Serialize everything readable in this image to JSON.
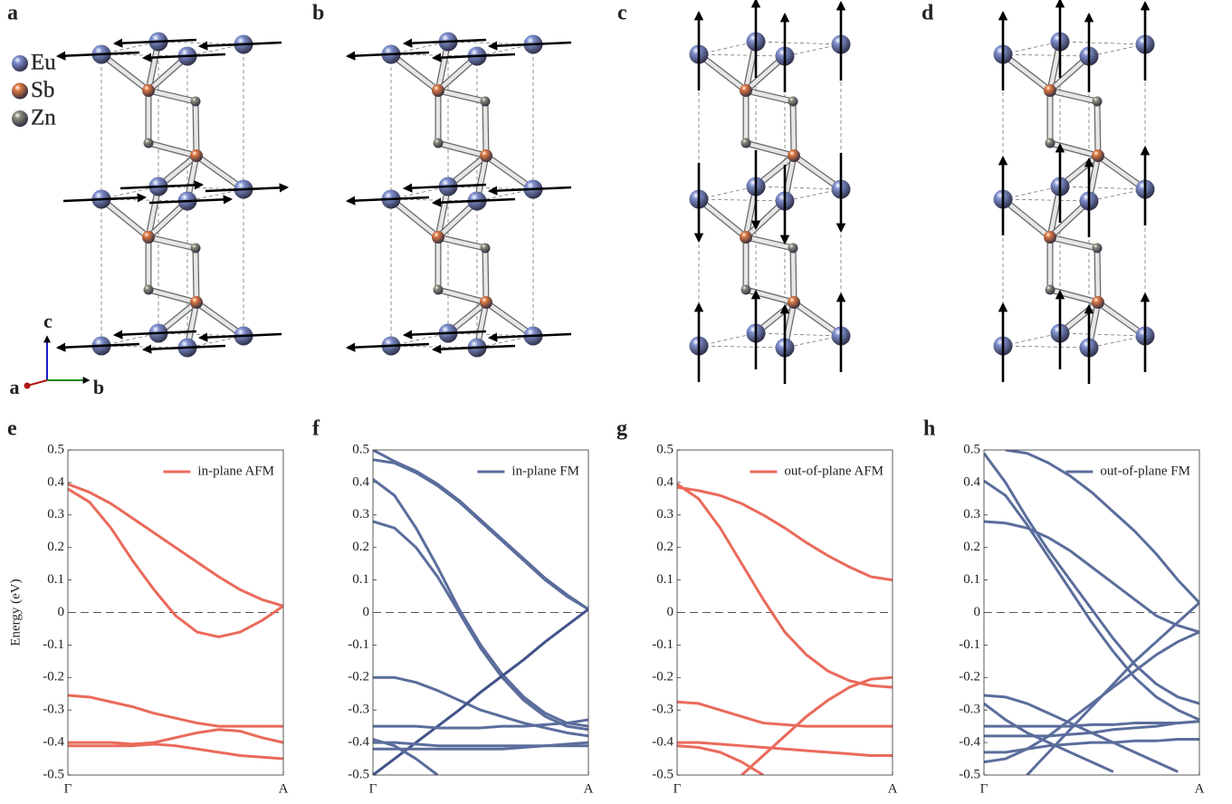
{
  "structures": {
    "panels": [
      "a",
      "b",
      "c",
      "d"
    ],
    "atoms": [
      {
        "label": "Eu",
        "color": "#8090d0"
      },
      {
        "label": "Sb",
        "color": "#e07a42"
      },
      {
        "label": "Zn",
        "color": "#8c8c7c"
      }
    ],
    "axes": [
      {
        "label": "c",
        "color": "#1a1acc"
      },
      {
        "label": "a",
        "color": "#b01515"
      },
      {
        "label": "b",
        "color": "#178a17"
      }
    ]
  },
  "chart_data": [
    {
      "type": "line",
      "label": "e",
      "ylabel": "Energy (eV)",
      "x": [
        0,
        0.1,
        0.2,
        0.3,
        0.4,
        0.5,
        0.6,
        0.7,
        0.8,
        0.9,
        1
      ],
      "xlim": [
        0,
        1
      ],
      "xticks": [
        {
          "value": 0,
          "label": "Γ"
        },
        {
          "value": 1,
          "label": "A"
        }
      ],
      "ylim": [
        -0.5,
        0.5
      ],
      "yticks": [
        -0.5,
        -0.4,
        -0.3,
        -0.2,
        -0.1,
        0,
        0.1,
        0.2,
        0.3,
        0.4,
        0.5
      ],
      "reference_line": 0,
      "legend": "upper right",
      "series": [
        {
          "name": "in-plane AFM",
          "color": "#ea6a5b",
          "values": [
            0.395,
            0.37,
            0.335,
            0.29,
            0.245,
            0.2,
            0.155,
            0.11,
            0.07,
            0.04,
            0.02
          ]
        },
        {
          "color": "#ea6a5b",
          "values": [
            0.38,
            0.34,
            0.26,
            0.16,
            0.07,
            -0.01,
            -0.06,
            -0.075,
            -0.06,
            -0.025,
            0.02
          ]
        },
        {
          "color": "#ea6a5b",
          "values": [
            -0.255,
            -0.26,
            -0.275,
            -0.29,
            -0.31,
            -0.325,
            -0.34,
            -0.35,
            -0.35,
            -0.35,
            -0.35
          ]
        },
        {
          "color": "#ea6a5b",
          "values": [
            -0.4,
            -0.4,
            -0.4,
            -0.405,
            -0.4,
            -0.385,
            -0.37,
            -0.36,
            -0.365,
            -0.385,
            -0.4
          ]
        },
        {
          "color": "#ea6a5b",
          "values": [
            -0.41,
            -0.41,
            -0.41,
            -0.41,
            -0.405,
            -0.41,
            -0.42,
            -0.43,
            -0.44,
            -0.445,
            -0.45
          ]
        }
      ]
    },
    {
      "type": "line",
      "label": "f",
      "x": [
        0,
        0.1,
        0.2,
        0.3,
        0.4,
        0.5,
        0.6,
        0.7,
        0.8,
        0.9,
        1
      ],
      "xlim": [
        0,
        1
      ],
      "xticks": [
        {
          "value": 0,
          "label": "Γ"
        },
        {
          "value": 1,
          "label": "A"
        }
      ],
      "ylim": [
        -0.5,
        0.5
      ],
      "yticks": [
        -0.5,
        -0.4,
        -0.3,
        -0.2,
        -0.1,
        0,
        0.1,
        0.2,
        0.3,
        0.4,
        0.5
      ],
      "reference_line": 0,
      "legend": "upper right",
      "series": [
        {
          "name": "in-plane FM",
          "color": "#5b6d9c",
          "values": [
            0.47,
            0.46,
            0.43,
            0.39,
            0.34,
            0.28,
            0.22,
            0.16,
            0.1,
            0.05,
            0.01
          ]
        },
        {
          "color": "#5b6d9c",
          "values": [
            0.5,
            0.465,
            0.435,
            0.395,
            0.345,
            0.285,
            0.225,
            0.165,
            0.105,
            0.055,
            0.01
          ]
        },
        {
          "color": "#5b6d9c",
          "values": [
            0.41,
            0.36,
            0.26,
            0.14,
            0.01,
            -0.1,
            -0.19,
            -0.26,
            -0.31,
            -0.34,
            -0.35
          ]
        },
        {
          "color": "#5b6d9c",
          "values": [
            0.28,
            0.26,
            0.2,
            0.11,
            0.0,
            -0.11,
            -0.2,
            -0.27,
            -0.32,
            -0.35,
            -0.36
          ]
        },
        {
          "color": "#5b6d9c",
          "values": [
            -0.2,
            -0.2,
            -0.215,
            -0.24,
            -0.27,
            -0.3,
            -0.32,
            -0.34,
            -0.355,
            -0.37,
            -0.38
          ]
        },
        {
          "color": "#42538a",
          "values": [
            -0.5,
            -0.45,
            -0.4,
            -0.35,
            -0.3,
            -0.245,
            -0.195,
            -0.145,
            -0.09,
            -0.04,
            0.01
          ]
        },
        {
          "color": "#5b6d9c",
          "values": [
            -0.35,
            -0.35,
            -0.35,
            -0.355,
            -0.355,
            -0.355,
            -0.35,
            -0.35,
            -0.345,
            -0.34,
            -0.33
          ]
        },
        {
          "color": "#5b6d9c",
          "values": [
            -0.39,
            -0.41,
            -0.45,
            -0.5,
            null,
            null,
            null,
            null,
            null,
            null,
            null
          ]
        },
        {
          "color": "#5b6d9c",
          "values": [
            -0.42,
            -0.42,
            -0.42,
            -0.42,
            -0.42,
            -0.42,
            -0.42,
            -0.415,
            -0.41,
            -0.405,
            -0.4
          ]
        },
        {
          "color": "#5b6d9c",
          "values": [
            -0.4,
            -0.4,
            -0.405,
            -0.41,
            -0.41,
            -0.41,
            -0.41,
            -0.41,
            -0.41,
            -0.41,
            -0.41
          ]
        }
      ]
    },
    {
      "type": "line",
      "label": "g",
      "x": [
        0,
        0.1,
        0.2,
        0.3,
        0.4,
        0.5,
        0.6,
        0.7,
        0.8,
        0.9,
        1
      ],
      "xlim": [
        0,
        1
      ],
      "xticks": [
        {
          "value": 0,
          "label": "Γ"
        },
        {
          "value": 1,
          "label": "A"
        }
      ],
      "ylim": [
        -0.5,
        0.5
      ],
      "yticks": [
        -0.5,
        -0.4,
        -0.3,
        -0.2,
        -0.1,
        0,
        0.1,
        0.2,
        0.3,
        0.4,
        0.5
      ],
      "reference_line": 0,
      "legend": "upper right",
      "series": [
        {
          "name": "out-of-plane AFM",
          "color": "#ea6a5b",
          "values": [
            0.385,
            0.375,
            0.36,
            0.335,
            0.3,
            0.26,
            0.215,
            0.175,
            0.14,
            0.11,
            0.1
          ]
        },
        {
          "color": "#ea6a5b",
          "values": [
            0.395,
            0.35,
            0.26,
            0.15,
            0.04,
            -0.06,
            -0.13,
            -0.18,
            -0.21,
            -0.225,
            -0.23
          ]
        },
        {
          "color": "#ea6a5b",
          "values": [
            -0.275,
            -0.28,
            -0.3,
            -0.32,
            -0.34,
            -0.345,
            -0.35,
            -0.35,
            -0.35,
            -0.35,
            -0.35
          ]
        },
        {
          "color": "#ea6a5b",
          "values": [
            null,
            null,
            null,
            -0.5,
            -0.44,
            -0.38,
            -0.32,
            -0.27,
            -0.23,
            -0.205,
            -0.2
          ]
        },
        {
          "color": "#ea6a5b",
          "values": [
            -0.4,
            -0.4,
            -0.405,
            -0.41,
            -0.415,
            -0.42,
            -0.425,
            -0.43,
            -0.435,
            -0.44,
            -0.44
          ]
        },
        {
          "color": "#ea6a5b",
          "values": [
            -0.41,
            -0.415,
            -0.43,
            -0.46,
            -0.5,
            null,
            null,
            null,
            null,
            null,
            null
          ]
        }
      ]
    },
    {
      "type": "line",
      "label": "h",
      "x": [
        0,
        0.1,
        0.2,
        0.3,
        0.4,
        0.5,
        0.6,
        0.7,
        0.8,
        0.9,
        1
      ],
      "xlim": [
        0,
        1
      ],
      "xticks": [
        {
          "value": 0,
          "label": "Γ"
        },
        {
          "value": 1,
          "label": "A"
        }
      ],
      "ylim": [
        -0.5,
        0.5
      ],
      "yticks": [
        -0.5,
        -0.4,
        -0.3,
        -0.2,
        -0.1,
        0,
        0.1,
        0.2,
        0.3,
        0.4,
        0.5
      ],
      "reference_line": 0,
      "legend": "upper right",
      "series": [
        {
          "name": "out-of-plane FM",
          "color": "#5b6d9c",
          "values": [
            null,
            0.5,
            0.49,
            0.46,
            0.42,
            0.37,
            0.31,
            0.25,
            0.18,
            0.1,
            0.03
          ]
        },
        {
          "color": "#5b6d9c",
          "values": [
            0.49,
            0.4,
            0.29,
            0.19,
            0.1,
            0.01,
            -0.08,
            -0.16,
            -0.22,
            -0.26,
            -0.28
          ]
        },
        {
          "color": "#5b6d9c",
          "values": [
            0.405,
            0.36,
            0.27,
            0.17,
            0.07,
            -0.03,
            -0.12,
            -0.2,
            -0.26,
            -0.3,
            -0.33
          ]
        },
        {
          "color": "#5b6d9c",
          "values": [
            0.28,
            0.275,
            0.26,
            0.23,
            0.19,
            0.14,
            0.09,
            0.04,
            -0.01,
            -0.04,
            -0.06
          ]
        },
        {
          "color": "#5b6d9c",
          "values": [
            -0.255,
            -0.26,
            -0.28,
            -0.31,
            -0.34,
            -0.37,
            -0.4,
            -0.43,
            -0.46,
            -0.49,
            null
          ]
        },
        {
          "color": "#5b6d9c",
          "values": [
            -0.28,
            -0.33,
            -0.37,
            -0.4,
            -0.43,
            -0.46,
            -0.49,
            null,
            null,
            null,
            null
          ]
        },
        {
          "color": "#5b6d9c",
          "values": [
            null,
            null,
            -0.5,
            -0.43,
            -0.36,
            -0.29,
            -0.22,
            -0.15,
            -0.09,
            -0.03,
            0.03
          ]
        },
        {
          "color": "#5b6d9c",
          "values": [
            -0.46,
            -0.45,
            -0.42,
            -0.38,
            -0.33,
            -0.28,
            -0.23,
            -0.18,
            -0.13,
            -0.09,
            -0.06
          ]
        },
        {
          "color": "#5b6d9c",
          "values": [
            -0.35,
            -0.35,
            -0.35,
            -0.35,
            -0.35,
            -0.345,
            -0.345,
            -0.34,
            -0.34,
            -0.34,
            -0.335
          ]
        },
        {
          "color": "#5b6d9c",
          "values": [
            -0.38,
            -0.38,
            -0.38,
            -0.38,
            -0.375,
            -0.37,
            -0.36,
            -0.355,
            -0.35,
            -0.34,
            -0.335
          ]
        },
        {
          "color": "#5b6d9c",
          "values": [
            -0.43,
            -0.43,
            -0.42,
            -0.41,
            -0.405,
            -0.4,
            -0.4,
            -0.395,
            -0.395,
            -0.39,
            -0.39
          ]
        }
      ]
    }
  ]
}
